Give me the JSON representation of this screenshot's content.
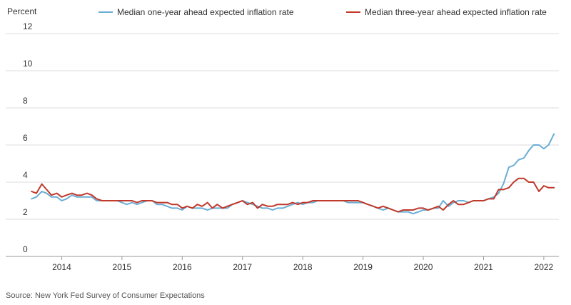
{
  "chart_data": {
    "type": "line",
    "title": "",
    "ylabel": "Percent",
    "xlabel": "",
    "ylim": [
      0,
      12
    ],
    "xlim": [
      2013.45,
      2022.25
    ],
    "y_ticks": [
      0,
      2,
      4,
      6,
      8,
      10,
      12
    ],
    "x_ticks": [
      {
        "value": 2014,
        "label": "2014"
      },
      {
        "value": 2015,
        "label": "2015"
      },
      {
        "value": 2016,
        "label": "2016"
      },
      {
        "value": 2017,
        "label": "2017"
      },
      {
        "value": 2018,
        "label": "2018"
      },
      {
        "value": 2019,
        "label": "2019"
      },
      {
        "value": 2020,
        "label": "2020"
      },
      {
        "value": 2021,
        "label": "2021"
      },
      {
        "value": 2022,
        "label": "2022"
      }
    ],
    "grid": "horizontal",
    "legend_position": "top",
    "source": "Source: New York Fed Survey of Consumer Expectations",
    "series": [
      {
        "name": "Median one-year ahead expected inflation rate",
        "color": "#6baed6",
        "x": [
          2013.5,
          2013.58,
          2013.67,
          2013.75,
          2013.83,
          2013.92,
          2014.0,
          2014.08,
          2014.17,
          2014.25,
          2014.33,
          2014.42,
          2014.5,
          2014.58,
          2014.67,
          2014.75,
          2014.83,
          2014.92,
          2015.0,
          2015.08,
          2015.17,
          2015.25,
          2015.33,
          2015.42,
          2015.5,
          2015.58,
          2015.67,
          2015.75,
          2015.83,
          2015.92,
          2016.0,
          2016.08,
          2016.17,
          2016.25,
          2016.33,
          2016.42,
          2016.5,
          2016.58,
          2016.67,
          2016.75,
          2016.83,
          2016.92,
          2017.0,
          2017.08,
          2017.17,
          2017.25,
          2017.33,
          2017.42,
          2017.5,
          2017.58,
          2017.67,
          2017.75,
          2017.83,
          2017.92,
          2018.0,
          2018.08,
          2018.17,
          2018.25,
          2018.33,
          2018.42,
          2018.5,
          2018.58,
          2018.67,
          2018.75,
          2018.83,
          2018.92,
          2019.0,
          2019.08,
          2019.17,
          2019.25,
          2019.33,
          2019.42,
          2019.5,
          2019.58,
          2019.67,
          2019.75,
          2019.83,
          2019.92,
          2020.0,
          2020.08,
          2020.17,
          2020.25,
          2020.33,
          2020.42,
          2020.5,
          2020.58,
          2020.67,
          2020.75,
          2020.83,
          2020.92,
          2021.0,
          2021.08,
          2021.17,
          2021.25,
          2021.33,
          2021.42,
          2021.5,
          2021.58,
          2021.67,
          2021.75,
          2021.83,
          2021.92,
          2022.0,
          2022.08,
          2022.17
        ],
        "y": [
          3.1,
          3.2,
          3.5,
          3.4,
          3.2,
          3.2,
          3.0,
          3.1,
          3.3,
          3.2,
          3.2,
          3.2,
          3.2,
          3.0,
          3.0,
          3.0,
          3.0,
          3.0,
          2.9,
          2.8,
          2.9,
          2.8,
          2.9,
          3.0,
          3.0,
          2.8,
          2.8,
          2.7,
          2.6,
          2.6,
          2.5,
          2.7,
          2.6,
          2.6,
          2.6,
          2.5,
          2.6,
          2.6,
          2.6,
          2.6,
          2.8,
          2.9,
          3.0,
          2.9,
          2.8,
          2.7,
          2.6,
          2.6,
          2.5,
          2.6,
          2.6,
          2.7,
          2.8,
          2.9,
          2.8,
          2.9,
          2.9,
          3.0,
          3.0,
          3.0,
          3.0,
          3.0,
          3.0,
          2.9,
          2.9,
          2.9,
          2.9,
          2.8,
          2.7,
          2.6,
          2.5,
          2.6,
          2.5,
          2.4,
          2.4,
          2.4,
          2.3,
          2.4,
          2.5,
          2.5,
          2.6,
          2.6,
          3.0,
          2.7,
          2.9,
          3.0,
          3.0,
          2.9,
          3.0,
          3.0,
          3.0,
          3.1,
          3.2,
          3.4,
          3.9,
          4.8,
          4.9,
          5.2,
          5.3,
          5.7,
          6.0,
          6.0,
          5.8,
          6.0,
          6.6
        ]
      },
      {
        "name": "Median three-year ahead expected inflation rate",
        "color": "#c0392b",
        "x": [
          2013.5,
          2013.58,
          2013.67,
          2013.75,
          2013.83,
          2013.92,
          2014.0,
          2014.08,
          2014.17,
          2014.25,
          2014.33,
          2014.42,
          2014.5,
          2014.58,
          2014.67,
          2014.75,
          2014.83,
          2014.92,
          2015.0,
          2015.08,
          2015.17,
          2015.25,
          2015.33,
          2015.42,
          2015.5,
          2015.58,
          2015.67,
          2015.75,
          2015.83,
          2015.92,
          2016.0,
          2016.08,
          2016.17,
          2016.25,
          2016.33,
          2016.42,
          2016.5,
          2016.58,
          2016.67,
          2016.75,
          2016.83,
          2016.92,
          2017.0,
          2017.08,
          2017.17,
          2017.25,
          2017.33,
          2017.42,
          2017.5,
          2017.58,
          2017.67,
          2017.75,
          2017.83,
          2017.92,
          2018.0,
          2018.08,
          2018.17,
          2018.25,
          2018.33,
          2018.42,
          2018.5,
          2018.58,
          2018.67,
          2018.75,
          2018.83,
          2018.92,
          2019.0,
          2019.08,
          2019.17,
          2019.25,
          2019.33,
          2019.42,
          2019.5,
          2019.58,
          2019.67,
          2019.75,
          2019.83,
          2019.92,
          2020.0,
          2020.08,
          2020.17,
          2020.25,
          2020.33,
          2020.42,
          2020.5,
          2020.58,
          2020.67,
          2020.75,
          2020.83,
          2020.92,
          2021.0,
          2021.08,
          2021.17,
          2021.25,
          2021.33,
          2021.42,
          2021.5,
          2021.58,
          2021.67,
          2021.75,
          2021.83,
          2021.92,
          2022.0,
          2022.08,
          2022.17
        ],
        "y": [
          3.5,
          3.4,
          3.9,
          3.6,
          3.3,
          3.4,
          3.2,
          3.3,
          3.4,
          3.3,
          3.3,
          3.4,
          3.3,
          3.1,
          3.0,
          3.0,
          3.0,
          3.0,
          3.0,
          3.0,
          3.0,
          2.9,
          3.0,
          3.0,
          3.0,
          2.9,
          2.9,
          2.9,
          2.8,
          2.8,
          2.6,
          2.7,
          2.6,
          2.8,
          2.7,
          2.9,
          2.6,
          2.8,
          2.6,
          2.7,
          2.8,
          2.9,
          3.0,
          2.8,
          2.9,
          2.6,
          2.8,
          2.7,
          2.7,
          2.8,
          2.8,
          2.8,
          2.9,
          2.8,
          2.9,
          2.9,
          3.0,
          3.0,
          3.0,
          3.0,
          3.0,
          3.0,
          3.0,
          3.0,
          3.0,
          3.0,
          2.9,
          2.8,
          2.7,
          2.6,
          2.7,
          2.6,
          2.5,
          2.4,
          2.5,
          2.5,
          2.5,
          2.6,
          2.6,
          2.5,
          2.6,
          2.7,
          2.5,
          2.8,
          3.0,
          2.8,
          2.8,
          2.9,
          3.0,
          3.0,
          3.0,
          3.1,
          3.1,
          3.6,
          3.6,
          3.7,
          4.0,
          4.2,
          4.2,
          4.0,
          4.0,
          3.5,
          3.8,
          3.7,
          3.7
        ]
      }
    ]
  }
}
